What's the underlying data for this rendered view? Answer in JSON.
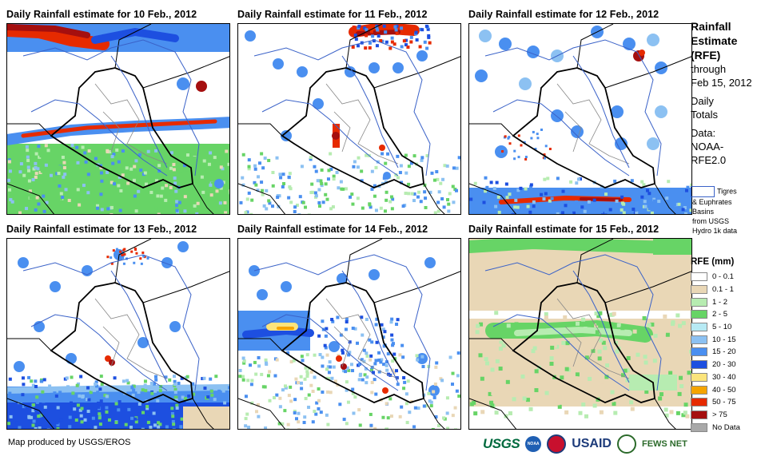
{
  "panels": [
    {
      "title": "Daily Rainfall estimate for 10 Feb., 2012"
    },
    {
      "title": "Daily Rainfall estimate for 11 Feb., 2012"
    },
    {
      "title": "Daily Rainfall estimate for 12 Feb., 2012"
    },
    {
      "title": "Daily Rainfall estimate for 13 Feb., 2012"
    },
    {
      "title": "Daily Rainfall estimate for 14 Feb., 2012"
    },
    {
      "title": "Daily Rainfall estimate for 15 Feb., 2012"
    }
  ],
  "sidebar": {
    "title_line1": "Rainfall",
    "title_line2": "Estimate",
    "title_line3": "(RFE)",
    "through": "through",
    "date": "Feb 15, 2012",
    "daily": "Daily",
    "totals": "Totals",
    "data_label": "Data:",
    "source1": "NOAA-",
    "source2": "RFE2.0"
  },
  "basin_note": {
    "line1": "Tigres",
    "line2": "& Euphrates",
    "line3": "Basins",
    "line4": "from USGS",
    "line5": "Hydro 1k data"
  },
  "legend": {
    "title": "RFE (mm)",
    "items": [
      {
        "label": "0 - 0.1",
        "color": "#ffffff"
      },
      {
        "label": "0.1 - 1",
        "color": "#e9d7b6"
      },
      {
        "label": "1 - 2",
        "color": "#b7ecb1"
      },
      {
        "label": "2 - 5",
        "color": "#67d466"
      },
      {
        "label": "5 - 10",
        "color": "#b7eaf4"
      },
      {
        "label": "10 - 15",
        "color": "#8cc1f2"
      },
      {
        "label": "15 - 20",
        "color": "#4a8ff0"
      },
      {
        "label": "20 - 30",
        "color": "#1d4fe0"
      },
      {
        "label": "30 - 40",
        "color": "#fbe47c"
      },
      {
        "label": "40 - 50",
        "color": "#f5a400"
      },
      {
        "label": "50 - 75",
        "color": "#e62a00"
      },
      {
        "label": "> 75",
        "color": "#a50f0f"
      },
      {
        "label": "No Data",
        "color": "#a9a9a9"
      }
    ]
  },
  "footer": {
    "credit": "Map produced by USGS/EROS",
    "logo_usgs": "USGS",
    "logo_noaa": "NOAA",
    "logo_usaid": "USAID",
    "logo_fews": "FEWS NET"
  }
}
